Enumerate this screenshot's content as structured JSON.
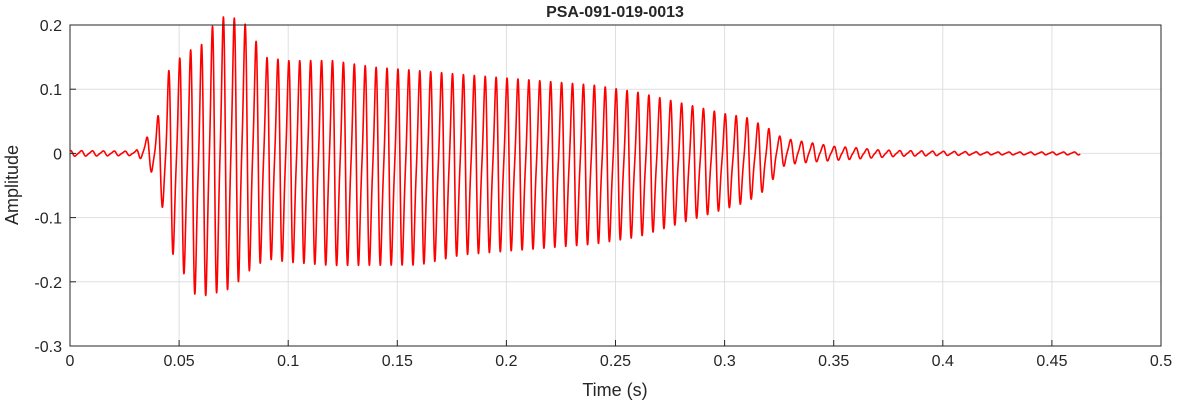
{
  "chart_data": {
    "type": "line",
    "title": "PSA-091-019-0013",
    "xlabel": "Time (s)",
    "ylabel": "Amplitude",
    "xlim": [
      0,
      0.5
    ],
    "ylim": [
      -0.3,
      0.2
    ],
    "grid": true,
    "x_ticks": [
      0,
      0.05,
      0.1,
      0.15,
      0.2,
      0.25,
      0.3,
      0.35,
      0.4,
      0.45,
      0.5
    ],
    "x_tick_labels": [
      "0",
      "0.05",
      "0.1",
      "0.15",
      "0.2",
      "0.25",
      "0.3",
      "0.35",
      "0.4",
      "0.45",
      "0.5"
    ],
    "y_ticks": [
      -0.3,
      -0.2,
      -0.1,
      0,
      0.1,
      0.2
    ],
    "y_tick_labels": [
      "-0.3",
      "-0.2",
      "-0.1",
      "0",
      "0.1",
      "0.2"
    ],
    "series": [
      {
        "color": "#ff0000",
        "envelope_x": [
          0,
          0.03,
          0.034,
          0.038,
          0.042,
          0.045,
          0.048,
          0.052,
          0.056,
          0.06,
          0.065,
          0.07,
          0.075,
          0.08,
          0.085,
          0.09,
          0.1,
          0.12,
          0.14,
          0.16,
          0.18,
          0.2,
          0.22,
          0.24,
          0.26,
          0.28,
          0.3,
          0.31,
          0.32,
          0.325,
          0.33,
          0.34,
          0.35,
          0.36,
          0.37,
          0.38,
          0.4,
          0.42,
          0.44,
          0.463
        ],
        "envelope_max": [
          0.004,
          0.003,
          0.02,
          0.03,
          0.07,
          0.115,
          0.125,
          0.14,
          0.145,
          0.15,
          0.178,
          0.193,
          0.192,
          0.185,
          0.16,
          0.135,
          0.13,
          0.13,
          0.12,
          0.115,
          0.11,
          0.105,
          0.1,
          0.095,
          0.085,
          0.07,
          0.055,
          0.05,
          0.035,
          0.025,
          0.02,
          0.015,
          0.01,
          0.008,
          0.005,
          0.004,
          0.003,
          0.002,
          0.002,
          0.002
        ],
        "envelope_min": [
          -0.004,
          -0.003,
          -0.01,
          -0.03,
          -0.07,
          -0.14,
          -0.145,
          -0.17,
          -0.2,
          -0.205,
          -0.2,
          -0.195,
          -0.19,
          -0.17,
          -0.16,
          -0.15,
          -0.155,
          -0.16,
          -0.16,
          -0.16,
          -0.145,
          -0.14,
          -0.135,
          -0.13,
          -0.12,
          -0.1,
          -0.08,
          -0.07,
          -0.05,
          -0.02,
          -0.015,
          -0.012,
          -0.01,
          -0.008,
          -0.006,
          -0.004,
          -0.003,
          -0.002,
          -0.002,
          -0.002
        ],
        "fundamental_hz": 200,
        "x_end": 0.463
      }
    ]
  }
}
